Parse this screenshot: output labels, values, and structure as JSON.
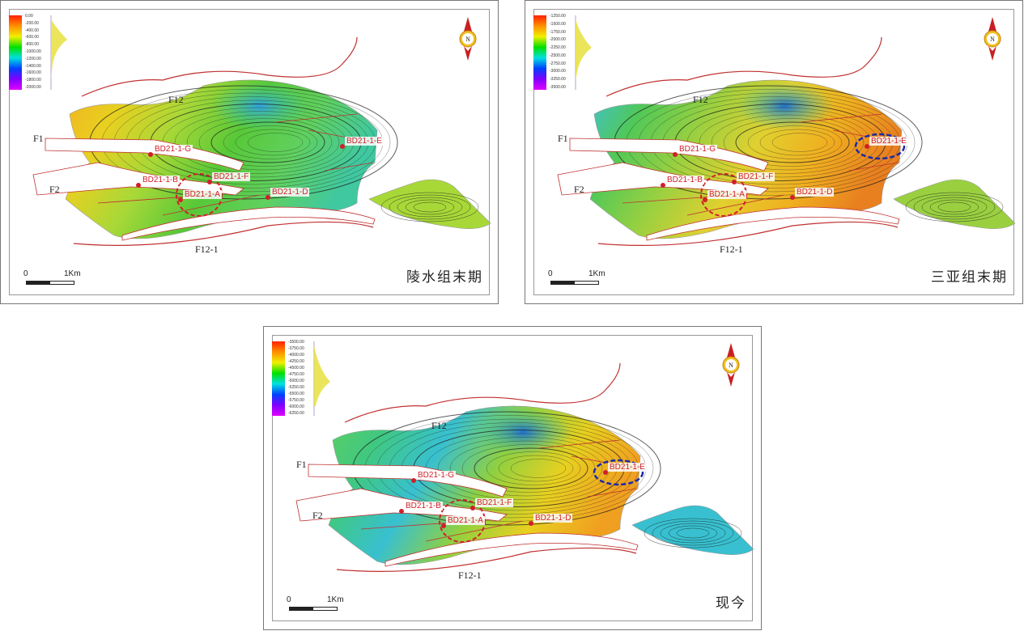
{
  "panels": [
    {
      "title": "陵水组末期",
      "legend": {
        "ticks": [
          "0.00",
          "-200.00",
          "-400.00",
          "-600.00",
          "-800.00",
          "-1000.00",
          "-1200.00",
          "-1400.00",
          "-1600.00",
          "-1800.00",
          "-2000.00"
        ]
      },
      "highlight_circles": [
        "red"
      ]
    },
    {
      "title": "三亚组末期",
      "legend": {
        "ticks": [
          "-1250.00",
          "-1500.00",
          "-1750.00",
          "-2000.00",
          "-2250.00",
          "-2500.00",
          "-2750.00",
          "-3000.00",
          "-3250.00",
          "-3500.00"
        ]
      },
      "highlight_circles": [
        "red",
        "blue"
      ]
    },
    {
      "title": "现今",
      "legend": {
        "ticks": [
          "-3500.00",
          "-3750.00",
          "-4000.00",
          "-4250.00",
          "-4500.00",
          "-4750.00",
          "-5000.00",
          "-5250.00",
          "-5500.00",
          "-5750.00",
          "-6000.00",
          "-6250.00"
        ]
      },
      "highlight_circles": [
        "red",
        "blue"
      ]
    }
  ],
  "faults": [
    "F12",
    "F1",
    "F2",
    "F12-1"
  ],
  "wells": [
    "BD21-1-G",
    "BD21-1-B",
    "BD21-1-F",
    "BD21-1-A",
    "BD21-1-D",
    "BD21-1-E"
  ],
  "scale": {
    "start": "0",
    "end": "1Km"
  },
  "compass": "N",
  "colors": {
    "well": "#d0202a",
    "fault_line": "#c03030",
    "circle_red": "#d0202a",
    "circle_blue": "#1a2aa8"
  }
}
